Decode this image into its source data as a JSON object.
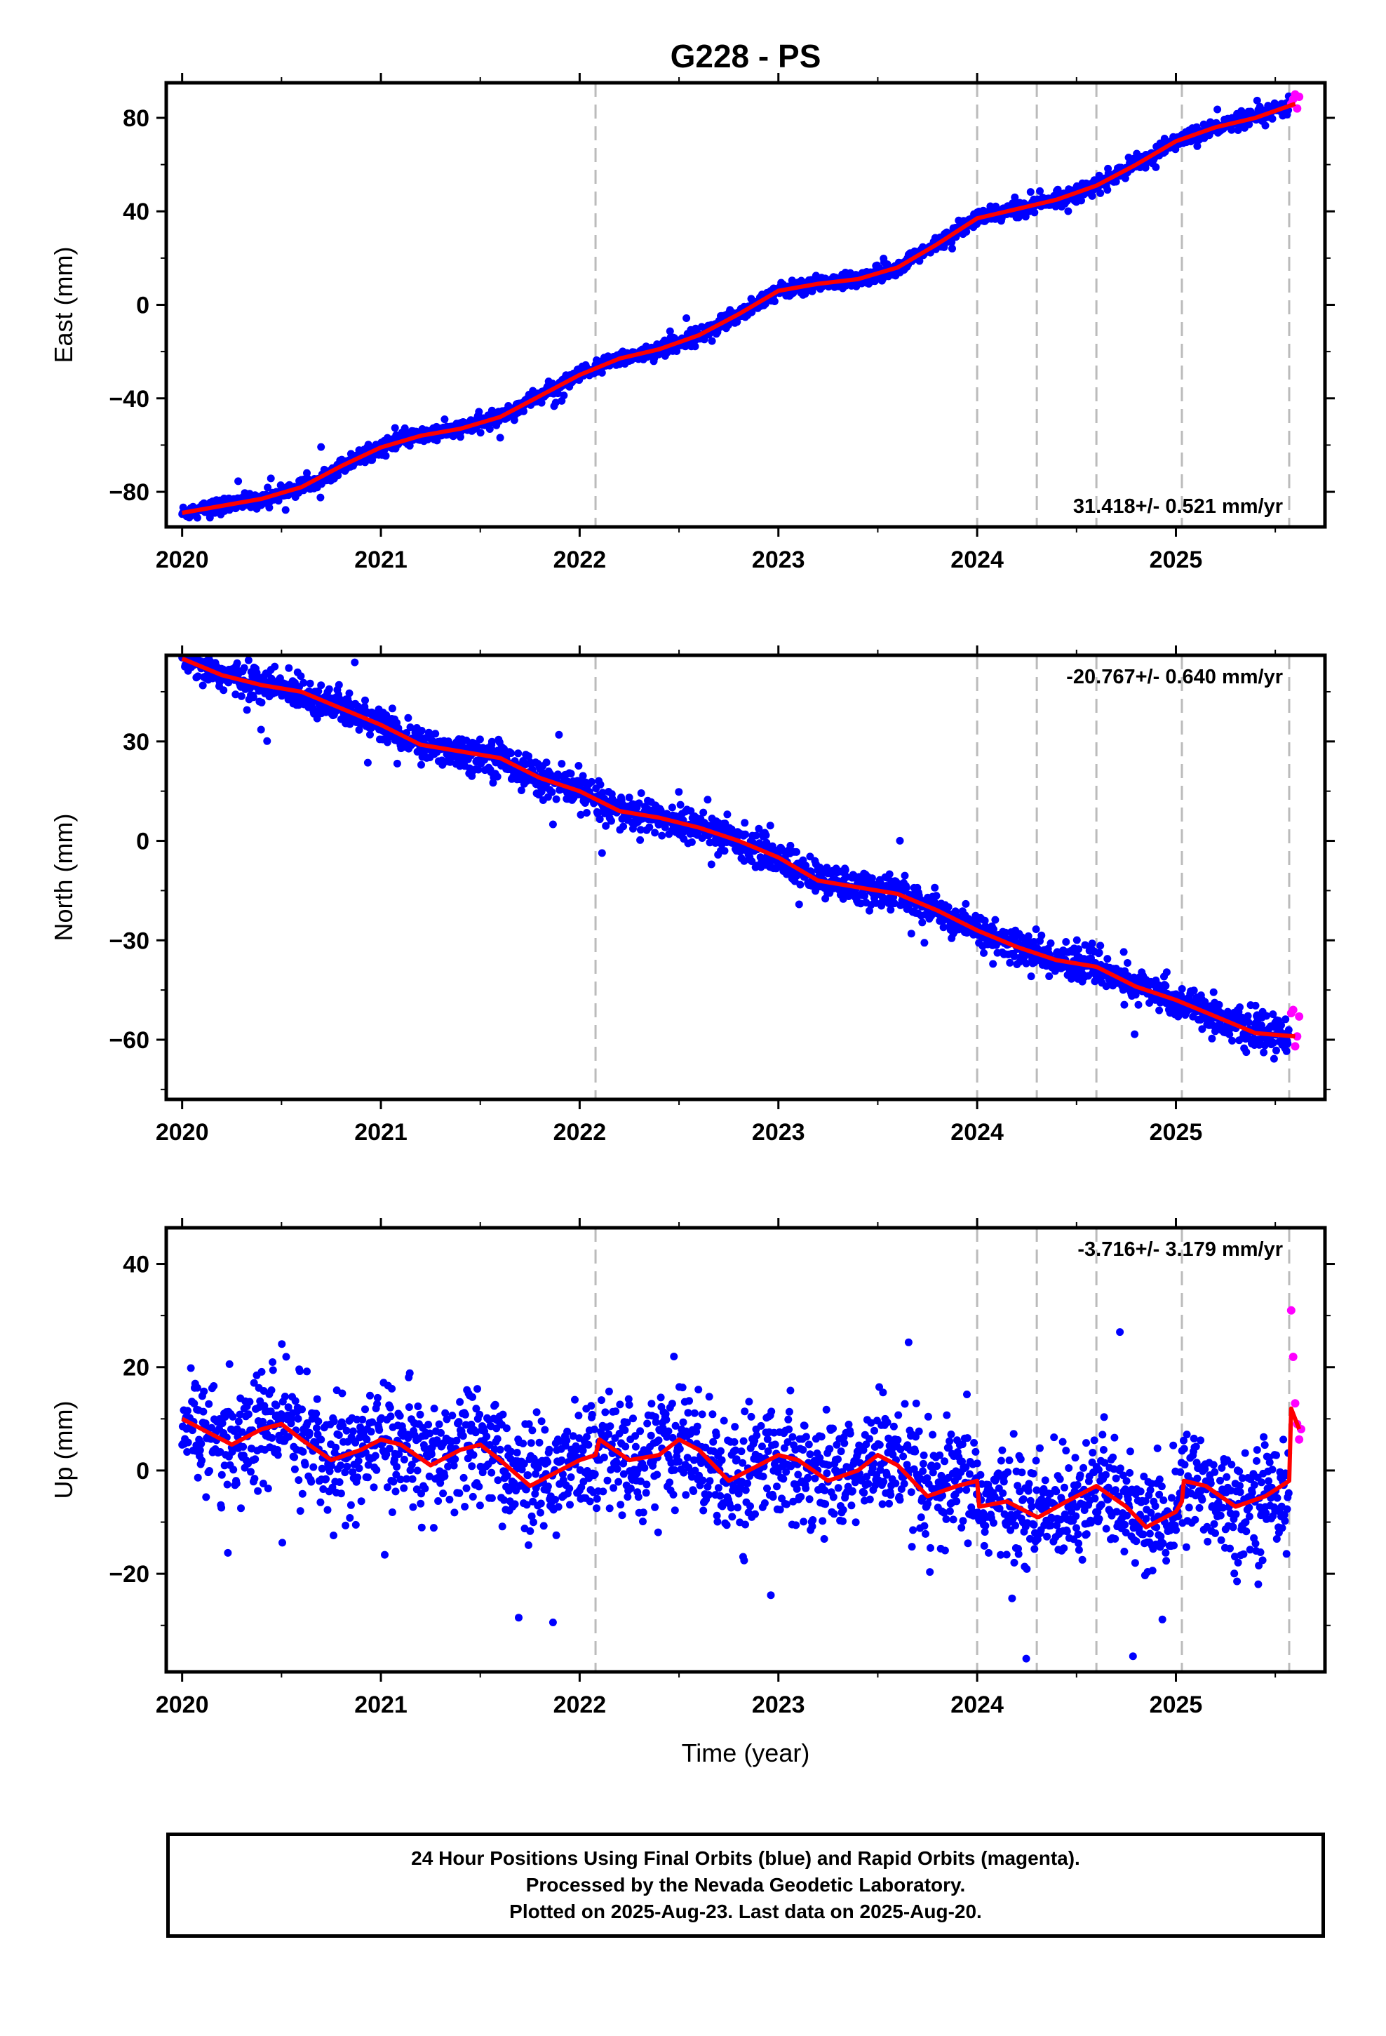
{
  "chart_data": [
    {
      "type": "scatter",
      "title": "G228 - PS",
      "ylabel": "East (mm)",
      "xlabel": "",
      "rate_text": "31.418+/- 0.521 mm/yr",
      "xlim": [
        2019.92,
        2025.75
      ],
      "ylim": [
        -95,
        95
      ],
      "yticks": [
        -80,
        -40,
        0,
        40,
        80
      ],
      "ytick_minor_step": 20,
      "xticks": [
        2020,
        2021,
        2022,
        2023,
        2024,
        2025
      ],
      "xtick_minor_step": 0.5,
      "breaks": [
        2022.08,
        2024.0,
        2024.3,
        2024.6,
        2025.03,
        2025.57
      ],
      "colors": {
        "final": "#0000ff",
        "rapid": "#ff00ff",
        "model": "#ff0000",
        "breaks": "#bbbbbb"
      },
      "series": [
        {
          "name": "Final Orbits (blue)",
          "points_approx": {
            "x_start": 2020.0,
            "x_end": 2025.57,
            "step": 0.00274,
            "scatter_sd": 1.6
          }
        },
        {
          "name": "Rapid Orbits (magenta)",
          "x": [
            2025.58,
            2025.59,
            2025.6,
            2025.61,
            2025.62
          ],
          "y": [
            86,
            88,
            90,
            84,
            89
          ]
        },
        {
          "name": "Model",
          "x": [
            2020.0,
            2020.2,
            2020.4,
            2020.6,
            2020.8,
            2021.0,
            2021.2,
            2021.4,
            2021.6,
            2021.8,
            2022.0,
            2022.2,
            2022.4,
            2022.6,
            2022.8,
            2023.0,
            2023.2,
            2023.4,
            2023.6,
            2023.8,
            2024.0,
            2024.2,
            2024.4,
            2024.6,
            2024.8,
            2025.0,
            2025.2,
            2025.4,
            2025.6
          ],
          "y": [
            -89,
            -86,
            -83,
            -78,
            -69,
            -61,
            -56,
            -53,
            -48,
            -39,
            -30,
            -23,
            -19,
            -13,
            -4,
            6,
            9,
            11,
            16,
            26,
            37,
            41,
            45,
            51,
            60,
            70,
            76,
            80,
            86
          ]
        }
      ]
    },
    {
      "type": "scatter",
      "title": "",
      "ylabel": "North (mm)",
      "xlabel": "",
      "rate_text": "-20.767+/- 0.640 mm/yr",
      "xlim": [
        2019.92,
        2025.75
      ],
      "ylim": [
        -78,
        56
      ],
      "yticks": [
        -60,
        -30,
        0,
        30
      ],
      "ytick_minor_step": 15,
      "xticks": [
        2020,
        2021,
        2022,
        2023,
        2024,
        2025
      ],
      "xtick_minor_step": 0.5,
      "breaks": [
        2022.08,
        2024.0,
        2024.3,
        2024.6,
        2025.03,
        2025.57
      ],
      "colors": {
        "final": "#0000ff",
        "rapid": "#ff00ff",
        "model": "#ff0000",
        "breaks": "#bbbbbb"
      },
      "series": [
        {
          "name": "Final Orbits (blue)",
          "points_approx": {
            "x_start": 2020.0,
            "x_end": 2025.57,
            "step": 0.00274,
            "scatter_sd": 2.6
          }
        },
        {
          "name": "Rapid Orbits (magenta)",
          "x": [
            2025.58,
            2025.59,
            2025.6,
            2025.61,
            2025.62
          ],
          "y": [
            -52,
            -51,
            -62,
            -59,
            -53
          ]
        },
        {
          "name": "Model",
          "x": [
            2020.0,
            2020.2,
            2020.4,
            2020.6,
            2020.8,
            2021.0,
            2021.2,
            2021.4,
            2021.6,
            2021.8,
            2022.0,
            2022.2,
            2022.4,
            2022.6,
            2022.8,
            2023.0,
            2023.2,
            2023.4,
            2023.6,
            2023.8,
            2024.0,
            2024.2,
            2024.4,
            2024.6,
            2024.8,
            2025.0,
            2025.2,
            2025.4,
            2025.6
          ],
          "y": [
            55,
            50,
            47,
            45,
            40,
            35,
            29,
            27,
            25,
            19,
            15,
            9,
            7,
            4,
            0,
            -5,
            -12,
            -14,
            -16,
            -21,
            -27,
            -32,
            -36,
            -38,
            -44,
            -48,
            -53,
            -58,
            -59
          ]
        }
      ]
    },
    {
      "type": "scatter",
      "title": "",
      "ylabel": "Up (mm)",
      "xlabel": "Time (year)",
      "rate_text": "-3.716+/- 3.179 mm/yr",
      "xlim": [
        2019.92,
        2025.75
      ],
      "ylim": [
        -39,
        47
      ],
      "yticks": [
        -20,
        0,
        20,
        40
      ],
      "ytick_minor_step": 10,
      "xticks": [
        2020,
        2021,
        2022,
        2023,
        2024,
        2025
      ],
      "xtick_minor_step": 0.5,
      "breaks": [
        2022.08,
        2024.0,
        2024.3,
        2024.6,
        2025.03,
        2025.57
      ],
      "colors": {
        "final": "#0000ff",
        "rapid": "#ff00ff",
        "model": "#ff0000",
        "breaks": "#bbbbbb"
      },
      "series": [
        {
          "name": "Final Orbits (blue)",
          "points_approx": {
            "x_start": 2020.0,
            "x_end": 2025.57,
            "step": 0.00274,
            "scatter_sd": 5.5
          }
        },
        {
          "name": "Rapid Orbits (magenta)",
          "x": [
            2025.58,
            2025.59,
            2025.6,
            2025.61,
            2025.62,
            2025.63
          ],
          "y": [
            31,
            22,
            13,
            9,
            6,
            8
          ]
        },
        {
          "name": "Model",
          "x": [
            2020.0,
            2020.1,
            2020.25,
            2020.4,
            2020.5,
            2020.6,
            2020.75,
            2020.9,
            2021.0,
            2021.1,
            2021.25,
            2021.4,
            2021.5,
            2021.6,
            2021.75,
            2021.9,
            2022.0,
            2022.08,
            2022.1,
            2022.25,
            2022.4,
            2022.5,
            2022.6,
            2022.75,
            2022.9,
            2023.0,
            2023.1,
            2023.25,
            2023.4,
            2023.5,
            2023.6,
            2023.75,
            2023.9,
            2024.0,
            2024.01,
            2024.15,
            2024.3,
            2024.31,
            2024.45,
            2024.6,
            2024.75,
            2024.85,
            2025.0,
            2025.03,
            2025.04,
            2025.15,
            2025.3,
            2025.45,
            2025.57,
            2025.58,
            2025.62
          ],
          "y": [
            10,
            8,
            5,
            8,
            9,
            6,
            2,
            4,
            6,
            5,
            1,
            4,
            5,
            2,
            -3,
            0,
            2,
            3,
            6,
            2,
            3,
            6,
            4,
            -2,
            1,
            3,
            2,
            -2,
            0,
            3,
            1,
            -5,
            -3,
            -2,
            -7,
            -6,
            -9,
            -9,
            -6,
            -3,
            -7,
            -11,
            -8,
            -6,
            -2,
            -3,
            -7,
            -5,
            -2,
            12,
            8
          ]
        }
      ]
    }
  ],
  "footer": {
    "line1": "24 Hour Positions Using Final Orbits (blue) and Rapid Orbits (magenta).",
    "line2": "Processed by the Nevada Geodetic Laboratory.",
    "line3": "Plotted on 2025-Aug-23. Last data on 2025-Aug-20."
  }
}
